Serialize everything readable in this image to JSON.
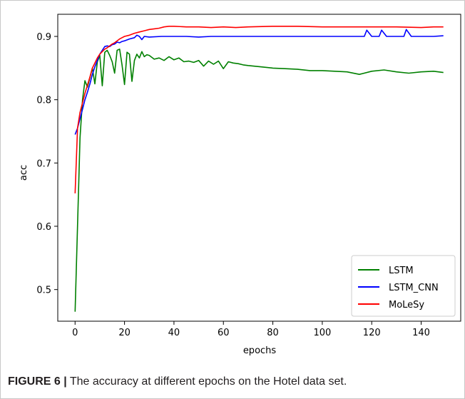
{
  "caption": {
    "label": "FIGURE 6 |",
    "text": " The accuracy at different epochs on the Hotel data set."
  },
  "chart_data": {
    "type": "line",
    "xlabel": "epochs",
    "ylabel": "acc",
    "xlim": [
      -7,
      156
    ],
    "ylim": [
      0.45,
      0.935
    ],
    "xticks": [
      0,
      20,
      40,
      60,
      80,
      100,
      120,
      140
    ],
    "yticks": [
      0.5,
      0.6,
      0.7,
      0.8,
      0.9
    ],
    "grid": false,
    "legend_position": "lower-right",
    "series": [
      {
        "name": "LSTM",
        "color": "#008000",
        "x": [
          0,
          1,
          2,
          3,
          4,
          5,
          6,
          7,
          8,
          9,
          10,
          11,
          12,
          13,
          14,
          15,
          16,
          17,
          18,
          19,
          20,
          21,
          22,
          23,
          24,
          25,
          26,
          27,
          28,
          29,
          30,
          32,
          34,
          36,
          38,
          40,
          42,
          44,
          46,
          48,
          50,
          52,
          54,
          56,
          58,
          60,
          62,
          64,
          66,
          68,
          70,
          75,
          80,
          85,
          90,
          95,
          100,
          105,
          110,
          115,
          120,
          125,
          130,
          135,
          140,
          145,
          149
        ],
        "y": [
          0.465,
          0.6,
          0.74,
          0.8,
          0.83,
          0.82,
          0.835,
          0.85,
          0.825,
          0.86,
          0.87,
          0.822,
          0.875,
          0.878,
          0.87,
          0.86,
          0.842,
          0.878,
          0.88,
          0.855,
          0.824,
          0.875,
          0.872,
          0.829,
          0.862,
          0.872,
          0.866,
          0.876,
          0.868,
          0.871,
          0.87,
          0.864,
          0.866,
          0.862,
          0.868,
          0.863,
          0.866,
          0.86,
          0.861,
          0.859,
          0.862,
          0.853,
          0.861,
          0.856,
          0.861,
          0.849,
          0.86,
          0.858,
          0.857,
          0.855,
          0.854,
          0.852,
          0.85,
          0.849,
          0.848,
          0.846,
          0.846,
          0.845,
          0.844,
          0.84,
          0.845,
          0.847,
          0.844,
          0.842,
          0.844,
          0.845,
          0.843
        ]
      },
      {
        "name": "LSTM_CNN",
        "color": "#0000ff",
        "x": [
          0,
          1,
          2,
          3,
          4,
          5,
          6,
          7,
          8,
          9,
          10,
          11,
          12,
          13,
          14,
          15,
          16,
          17,
          18,
          19,
          20,
          22,
          24,
          25,
          26,
          27,
          28,
          30,
          35,
          40,
          45,
          50,
          55,
          60,
          65,
          70,
          80,
          90,
          100,
          110,
          115,
          117,
          118,
          120,
          123,
          124,
          126,
          130,
          133,
          134,
          136,
          140,
          145,
          149
        ],
        "y": [
          0.745,
          0.755,
          0.77,
          0.785,
          0.8,
          0.812,
          0.825,
          0.84,
          0.852,
          0.862,
          0.872,
          0.878,
          0.884,
          0.885,
          0.884,
          0.887,
          0.888,
          0.891,
          0.89,
          0.892,
          0.893,
          0.896,
          0.898,
          0.902,
          0.9,
          0.895,
          0.9,
          0.899,
          0.9,
          0.9,
          0.9,
          0.899,
          0.9,
          0.9,
          0.9,
          0.9,
          0.9,
          0.9,
          0.9,
          0.9,
          0.9,
          0.9,
          0.91,
          0.9,
          0.9,
          0.91,
          0.9,
          0.9,
          0.9,
          0.911,
          0.9,
          0.9,
          0.9,
          0.901
        ]
      },
      {
        "name": "MoLeSy",
        "color": "#ff0000",
        "x": [
          0,
          1,
          2,
          3,
          4,
          5,
          6,
          7,
          8,
          9,
          10,
          11,
          12,
          13,
          14,
          15,
          16,
          17,
          18,
          19,
          20,
          22,
          24,
          26,
          28,
          30,
          32,
          34,
          36,
          38,
          40,
          45,
          50,
          55,
          60,
          65,
          70,
          80,
          90,
          100,
          110,
          120,
          130,
          140,
          145,
          149
        ],
        "y": [
          0.652,
          0.755,
          0.78,
          0.795,
          0.81,
          0.823,
          0.836,
          0.85,
          0.858,
          0.866,
          0.872,
          0.876,
          0.88,
          0.882,
          0.885,
          0.888,
          0.89,
          0.893,
          0.896,
          0.898,
          0.9,
          0.902,
          0.905,
          0.907,
          0.909,
          0.911,
          0.912,
          0.913,
          0.915,
          0.916,
          0.916,
          0.915,
          0.915,
          0.914,
          0.915,
          0.914,
          0.915,
          0.916,
          0.916,
          0.915,
          0.915,
          0.915,
          0.915,
          0.914,
          0.915,
          0.915
        ]
      }
    ]
  }
}
